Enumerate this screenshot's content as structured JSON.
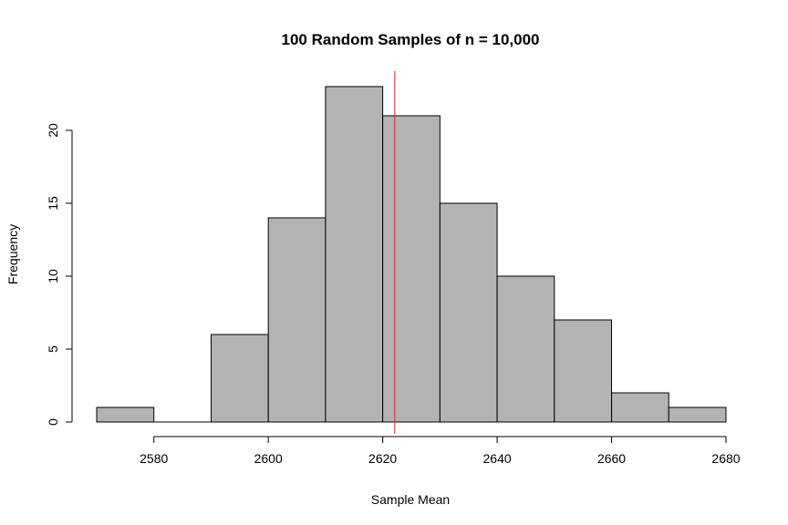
{
  "chart_data": {
    "type": "bar",
    "title": "100 Random Samples of n = 10,000",
    "xlabel": "Sample Mean",
    "ylabel": "Frequency",
    "bins": [
      {
        "from": 2570,
        "to": 2580,
        "count": 1
      },
      {
        "from": 2580,
        "to": 2590,
        "count": 0
      },
      {
        "from": 2590,
        "to": 2600,
        "count": 6
      },
      {
        "from": 2600,
        "to": 2610,
        "count": 14
      },
      {
        "from": 2610,
        "to": 2620,
        "count": 23
      },
      {
        "from": 2620,
        "to": 2630,
        "count": 21
      },
      {
        "from": 2630,
        "to": 2640,
        "count": 15
      },
      {
        "from": 2640,
        "to": 2650,
        "count": 10
      },
      {
        "from": 2650,
        "to": 2660,
        "count": 7
      },
      {
        "from": 2660,
        "to": 2670,
        "count": 2
      },
      {
        "from": 2670,
        "to": 2680,
        "count": 1
      }
    ],
    "x_ticks": [
      2580,
      2600,
      2620,
      2640,
      2660,
      2680
    ],
    "y_ticks": [
      0,
      5,
      10,
      15,
      20
    ],
    "xlim": [
      2570,
      2680
    ],
    "ylim": [
      0,
      23
    ],
    "reference_line": {
      "x": 2622.1
    },
    "bar_color": "#b3b3b3",
    "line_color": "#e5202e",
    "grid": false,
    "legend": "none"
  }
}
